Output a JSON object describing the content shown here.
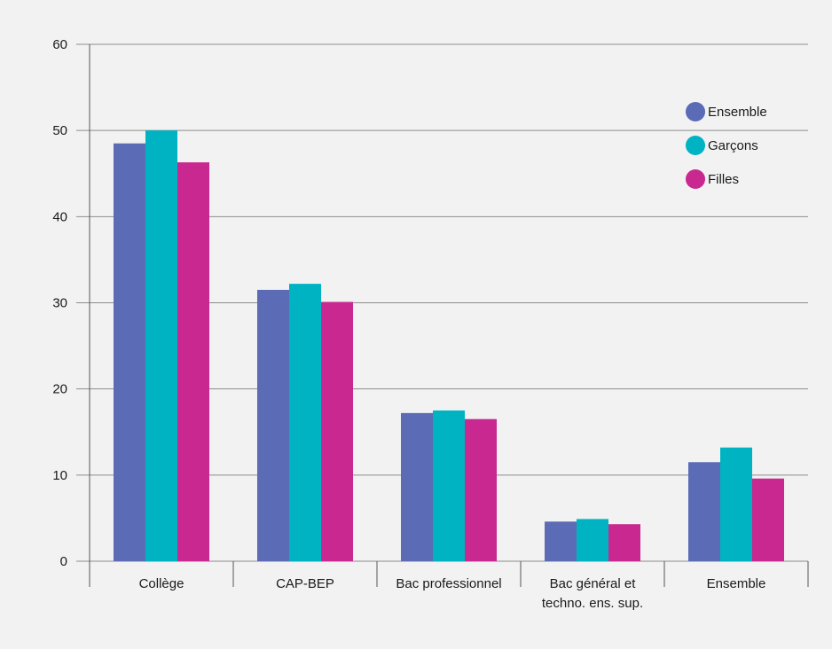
{
  "chart_data": {
    "type": "bar",
    "categories": [
      [
        "Collège"
      ],
      [
        "CAP-BEP"
      ],
      [
        "Bac professionnel"
      ],
      [
        "Bac général et",
        "techno. ens. sup."
      ],
      [
        "Ensemble"
      ]
    ],
    "series": [
      {
        "name": "Ensemble",
        "color": "#5b6bb5",
        "values": [
          48.5,
          31.5,
          17.2,
          4.6,
          11.5
        ]
      },
      {
        "name": "Garçons",
        "color": "#00b3c3",
        "values": [
          50.0,
          32.2,
          17.5,
          4.9,
          13.2
        ]
      },
      {
        "name": "Filles",
        "color": "#c8288f",
        "values": [
          46.3,
          30.1,
          16.5,
          4.3,
          9.6
        ]
      }
    ],
    "ylim": [
      0,
      60
    ],
    "yticks": [
      0,
      10,
      20,
      30,
      40,
      50,
      60
    ],
    "grid": true,
    "legend": "top-right"
  }
}
